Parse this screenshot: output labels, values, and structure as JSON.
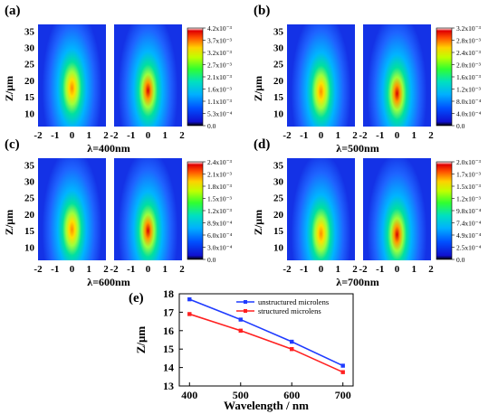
{
  "chart_data": [
    {
      "panel": "(a)",
      "type": "heatmap",
      "xlabel": "λ=400nm",
      "ylabel": "Z/μm",
      "x_ticks": [
        "-2",
        "-1",
        "0",
        "1",
        "2"
      ],
      "y_ticks": [
        "10",
        "15",
        "20",
        "25",
        "30",
        "35"
      ],
      "colorbar_ticks": [
        "0.0",
        "5.3x10⁻⁴",
        "1.1x10⁻³",
        "1.6x10⁻³",
        "2.1x10⁻³",
        "2.7x10⁻³",
        "3.2x10⁻³",
        "3.7x10⁻³",
        "4.2x10⁻³"
      ],
      "colorbar_range": [
        0,
        0.0042
      ],
      "maps": [
        {
          "focus_z": 17.7,
          "peak": 0.0031
        },
        {
          "focus_z": 16.9,
          "peak": 0.0042
        }
      ]
    },
    {
      "panel": "(b)",
      "type": "heatmap",
      "xlabel": "λ=500nm",
      "ylabel": "Z/μm",
      "x_ticks": [
        "-2",
        "-1",
        "0",
        "1",
        "2"
      ],
      "y_ticks": [
        "10",
        "15",
        "20",
        "25",
        "30",
        "35"
      ],
      "colorbar_ticks": [
        "0.0",
        "4.0x10⁻⁴",
        "8.0x10⁻⁴",
        "1.2x10⁻³",
        "1.6x10⁻³",
        "2.0x10⁻³",
        "2.4x10⁻³",
        "2.8x10⁻³",
        "3.2x10⁻³"
      ],
      "colorbar_range": [
        0,
        0.0032
      ],
      "maps": [
        {
          "focus_z": 16.6,
          "peak": 0.0024
        },
        {
          "focus_z": 16.0,
          "peak": 0.0032
        }
      ]
    },
    {
      "panel": "(c)",
      "type": "heatmap",
      "xlabel": "λ=600nm",
      "ylabel": "Z/μm",
      "x_ticks": [
        "-2",
        "-1",
        "0",
        "1",
        "2"
      ],
      "y_ticks": [
        "10",
        "15",
        "20",
        "25",
        "30",
        "35"
      ],
      "colorbar_ticks": [
        "0.0",
        "3.0x10⁻⁴",
        "6.0x10⁻⁴",
        "8.9x10⁻⁴",
        "1.2x10⁻³",
        "1.5x10⁻³",
        "1.8x10⁻³",
        "2.1x10⁻³",
        "2.4x10⁻³"
      ],
      "colorbar_range": [
        0,
        0.0024
      ],
      "maps": [
        {
          "focus_z": 15.4,
          "peak": 0.0019
        },
        {
          "focus_z": 15.0,
          "peak": 0.0024
        }
      ]
    },
    {
      "panel": "(d)",
      "type": "heatmap",
      "xlabel": "λ=700nm",
      "ylabel": "Z/μm",
      "x_ticks": [
        "-2",
        "-1",
        "0",
        "1",
        "2"
      ],
      "y_ticks": [
        "10",
        "15",
        "20",
        "25",
        "30",
        "35"
      ],
      "colorbar_ticks": [
        "0.0",
        "2.5x10⁻⁴",
        "4.9x10⁻⁴",
        "7.4x10⁻⁴",
        "9.8x10⁻⁴",
        "1.2x10⁻³",
        "1.5x10⁻³",
        "1.7x10⁻³",
        "2.0x10⁻³"
      ],
      "colorbar_range": [
        0,
        0.002
      ],
      "maps": [
        {
          "focus_z": 14.1,
          "peak": 0.0016
        },
        {
          "focus_z": 13.8,
          "peak": 0.002
        }
      ]
    },
    {
      "panel": "(e)",
      "type": "line",
      "xlabel": "Wavelength / nm",
      "ylabel": "Z/μm",
      "x": [
        400,
        500,
        600,
        700
      ],
      "xlim": [
        380,
        720
      ],
      "ylim": [
        13,
        18
      ],
      "x_ticks": [
        "400",
        "500",
        "600",
        "700"
      ],
      "y_ticks": [
        "13",
        "14",
        "15",
        "16",
        "17",
        "18"
      ],
      "legend_position": "top-right",
      "series": [
        {
          "name": "unstructured microlens",
          "color": "#1f3bff",
          "values": [
            17.7,
            16.6,
            15.4,
            14.1
          ]
        },
        {
          "name": "structured microlens",
          "color": "#ff2020",
          "values": [
            16.9,
            16.0,
            15.0,
            13.75
          ]
        }
      ]
    }
  ]
}
